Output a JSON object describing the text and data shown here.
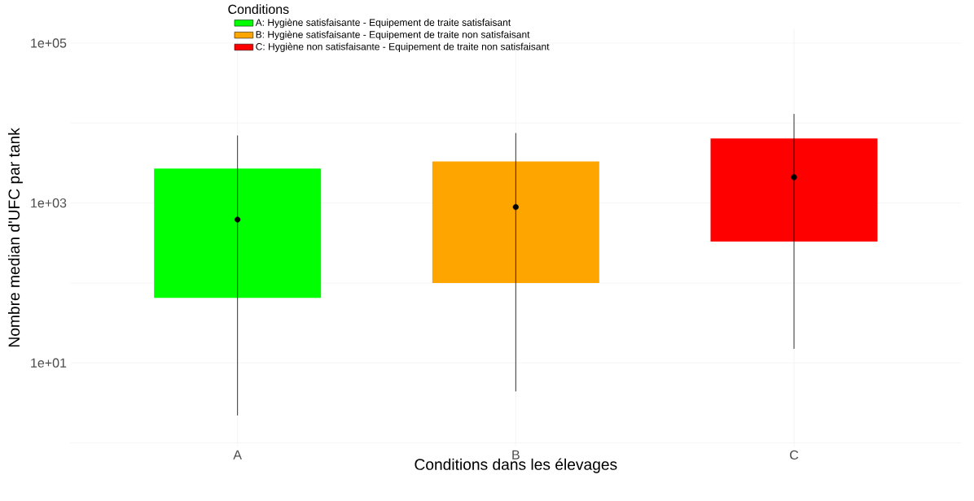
{
  "chart_data": {
    "type": "box",
    "xlabel": "Conditions dans les élevages",
    "ylabel": "Nombre median d'UFC par tank",
    "legend_title": "Conditions",
    "categories": [
      "A",
      "B",
      "C"
    ],
    "series": [
      {
        "name": "A: Hygiène satisfaisante - Equipement de traite satisfaisant",
        "color": "#00ff00",
        "boxes": [
          {
            "low": 2.2,
            "q1": 65,
            "median": 620,
            "q3": 2700,
            "high": 7000
          },
          null,
          null
        ]
      },
      {
        "name": "B: Hygiène satisfaisante - Equipement de traite non satisfaisant",
        "color": "#ffa500",
        "boxes": [
          null,
          {
            "low": 4.4,
            "q1": 100,
            "median": 890,
            "q3": 3300,
            "high": 7500
          },
          null
        ]
      },
      {
        "name": "C: Hygiène non satisfaisante - Equipement de traite non satisfaisant",
        "color": "#ff0000",
        "boxes": [
          null,
          null,
          {
            "low": 15,
            "q1": 330,
            "median": 2100,
            "q3": 6400,
            "high": 13000
          }
        ]
      }
    ],
    "log": "y",
    "ylim": [
      0.9,
      150000
    ],
    "yticks": [
      {
        "value": 1,
        "label": null
      },
      {
        "value": 10,
        "label": "1e+01"
      },
      {
        "value": 100,
        "label": null
      },
      {
        "value": 1000,
        "label": "1e+03"
      },
      {
        "value": 10000,
        "label": null
      },
      {
        "value": 100000,
        "label": "1e+05"
      }
    ],
    "grid": true,
    "legend": "top left"
  }
}
